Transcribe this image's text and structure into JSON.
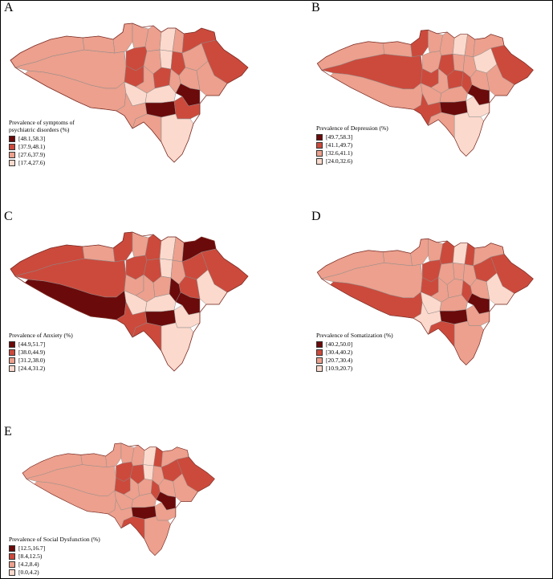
{
  "colors": {
    "level1": "#6b0a0a",
    "level2": "#cc4a3c",
    "level3": "#eca08d",
    "level4": "#fbd9cc",
    "boundary": "#8a8a8a",
    "outline": "#7d2a22"
  },
  "panels": [
    {
      "label": "A",
      "legend_title": "Prevalence of symptoms of\npsychiatric disorders (%)",
      "classes": [
        "[48.1,58.3]",
        "[37.9,48.1)",
        "[27.6,37.9)",
        "[17.4,27.6)"
      ]
    },
    {
      "label": "B",
      "legend_title": "Prevalence of Depression (%)",
      "classes": [
        "[49.7,58.3]",
        "[41.1,49.7)",
        "[32.6,41.1)",
        "[24.0,32.6)"
      ]
    },
    {
      "label": "C",
      "legend_title": "Prevalence of Anxiety (%)",
      "classes": [
        "[44.9,51.7]",
        "[38.0,44.9)",
        "[31.2,38.0)",
        "[24.4,31.2)"
      ]
    },
    {
      "label": "D",
      "legend_title": "Prevalence of Somatization (%)",
      "classes": [
        "[40.2,50.0]",
        "[30.4,40.2)",
        "[20.7,30.4)",
        "[10.9,20.7)"
      ]
    },
    {
      "label": "E",
      "legend_title": "Prevalence of Social Dysfunction (%)",
      "classes": [
        "[12.5,16.7]",
        "[8.4,12.5)",
        "[4.2,8.4)",
        "[0.0,4.2)"
      ]
    }
  ]
}
